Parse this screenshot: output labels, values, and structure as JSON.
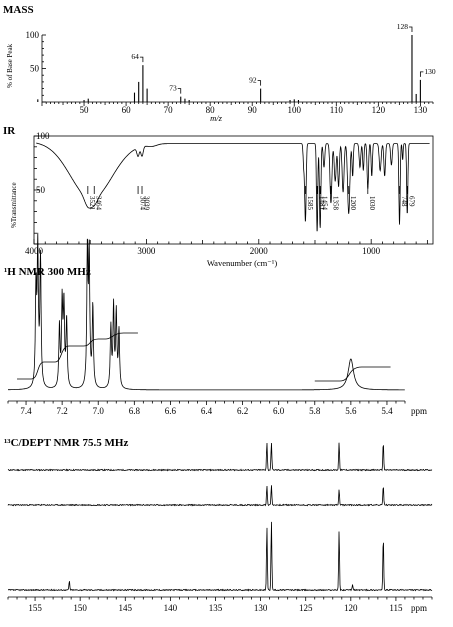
{
  "chart_data": [
    {
      "type": "bar",
      "title": "MASS",
      "xlabel": "m/z",
      "ylabel": "% of Base Peak",
      "xlim": [
        40,
        133
      ],
      "ylim": [
        0,
        100
      ],
      "xticks": [
        50,
        60,
        70,
        80,
        90,
        100,
        110,
        120,
        130
      ],
      "yticks": [
        50,
        100
      ],
      "peaks": [
        {
          "x": 39,
          "y": 4
        },
        {
          "x": 50,
          "y": 3
        },
        {
          "x": 51,
          "y": 5
        },
        {
          "x": 62,
          "y": 14
        },
        {
          "x": 63,
          "y": 30
        },
        {
          "x": 64,
          "y": 55
        },
        {
          "x": 65,
          "y": 20
        },
        {
          "x": 73,
          "y": 8
        },
        {
          "x": 74,
          "y": 5
        },
        {
          "x": 75,
          "y": 3
        },
        {
          "x": 92,
          "y": 20
        },
        {
          "x": 99,
          "y": 3
        },
        {
          "x": 100,
          "y": 4
        },
        {
          "x": 101,
          "y": 3
        },
        {
          "x": 128,
          "y": 100
        },
        {
          "x": 129,
          "y": 12
        },
        {
          "x": 130,
          "y": 33
        }
      ],
      "peak_labels": [
        {
          "x": 64,
          "text": "64"
        },
        {
          "x": 73,
          "text": "73"
        },
        {
          "x": 92,
          "text": "92"
        },
        {
          "x": 128,
          "text": "128"
        },
        {
          "x": 130,
          "text": "130"
        }
      ]
    },
    {
      "type": "line",
      "title": "IR",
      "xlabel": "Wavenumber (cm⁻¹)",
      "ylabel": "%Transmittance",
      "xlim": [
        4000,
        450
      ],
      "ylim": [
        0,
        100
      ],
      "xticks": [
        4000,
        3000,
        2000,
        1000
      ],
      "yticks": [
        50,
        100
      ],
      "peak_labels": [
        "3521",
        "3464",
        "3074",
        "3039",
        "1585",
        "1481",
        "1454",
        "1358",
        "1200",
        "1030",
        "748",
        "679"
      ],
      "peak_positions": [
        3521,
        3464,
        3074,
        3039,
        1585,
        1481,
        1454,
        1358,
        1200,
        1030,
        748,
        679
      ]
    },
    {
      "type": "line",
      "title": "¹H NMR 300 MHz",
      "xlabel": "ppm",
      "xlim": [
        7.5,
        5.3
      ],
      "xticks": [
        "7.4",
        "7.2",
        "7.0",
        "6.8",
        "6.6",
        "6.4",
        "6.2",
        "6.0",
        "5.8",
        "5.6",
        "5.4"
      ],
      "xtick_values": [
        7.4,
        7.2,
        7.0,
        6.8,
        6.6,
        6.4,
        6.2,
        6.0,
        5.8,
        5.6,
        5.4
      ],
      "peaks": [
        {
          "ppm": 7.345,
          "h": 0.72
        },
        {
          "ppm": 7.335,
          "h": 1.0
        },
        {
          "ppm": 7.32,
          "h": 0.95
        },
        {
          "ppm": 7.215,
          "h": 0.45
        },
        {
          "ppm": 7.2,
          "h": 0.62
        },
        {
          "ppm": 7.19,
          "h": 0.6
        },
        {
          "ppm": 7.175,
          "h": 0.5
        },
        {
          "ppm": 7.06,
          "h": 1.0
        },
        {
          "ppm": 7.05,
          "h": 0.95
        },
        {
          "ppm": 7.03,
          "h": 0.6
        },
        {
          "ppm": 6.93,
          "h": 0.45
        },
        {
          "ppm": 6.915,
          "h": 0.6
        },
        {
          "ppm": 6.9,
          "h": 0.55
        },
        {
          "ppm": 6.885,
          "h": 0.42
        },
        {
          "ppm": 5.6,
          "h": 0.23
        }
      ]
    },
    {
      "type": "line",
      "title": "¹³C/DEPT NMR 75.5 MHz",
      "xlabel": "ppm",
      "xlim": [
        158,
        111
      ],
      "xticks": [
        "155",
        "150",
        "145",
        "140",
        "135",
        "130",
        "125",
        "120",
        "115"
      ],
      "xtick_values": [
        155,
        150,
        145,
        140,
        135,
        130,
        125,
        120,
        115
      ],
      "dept90": [
        {
          "ppm": 129.3,
          "h": 1.0
        },
        {
          "ppm": 128.8,
          "h": 1.0
        },
        {
          "ppm": 121.3,
          "h": 1.0
        },
        {
          "ppm": 116.4,
          "h": 1.0
        }
      ],
      "dept135": [
        {
          "ppm": 129.3,
          "h": 0.7
        },
        {
          "ppm": 128.8,
          "h": 0.7
        },
        {
          "ppm": 121.3,
          "h": 0.55
        },
        {
          "ppm": 116.4,
          "h": 0.7
        }
      ],
      "broadband": [
        {
          "ppm": 151.2,
          "h": 0.12
        },
        {
          "ppm": 129.3,
          "h": 0.85
        },
        {
          "ppm": 128.8,
          "h": 0.93
        },
        {
          "ppm": 121.3,
          "h": 0.8
        },
        {
          "ppm": 119.8,
          "h": 0.07
        },
        {
          "ppm": 116.4,
          "h": 0.72
        }
      ]
    }
  ]
}
